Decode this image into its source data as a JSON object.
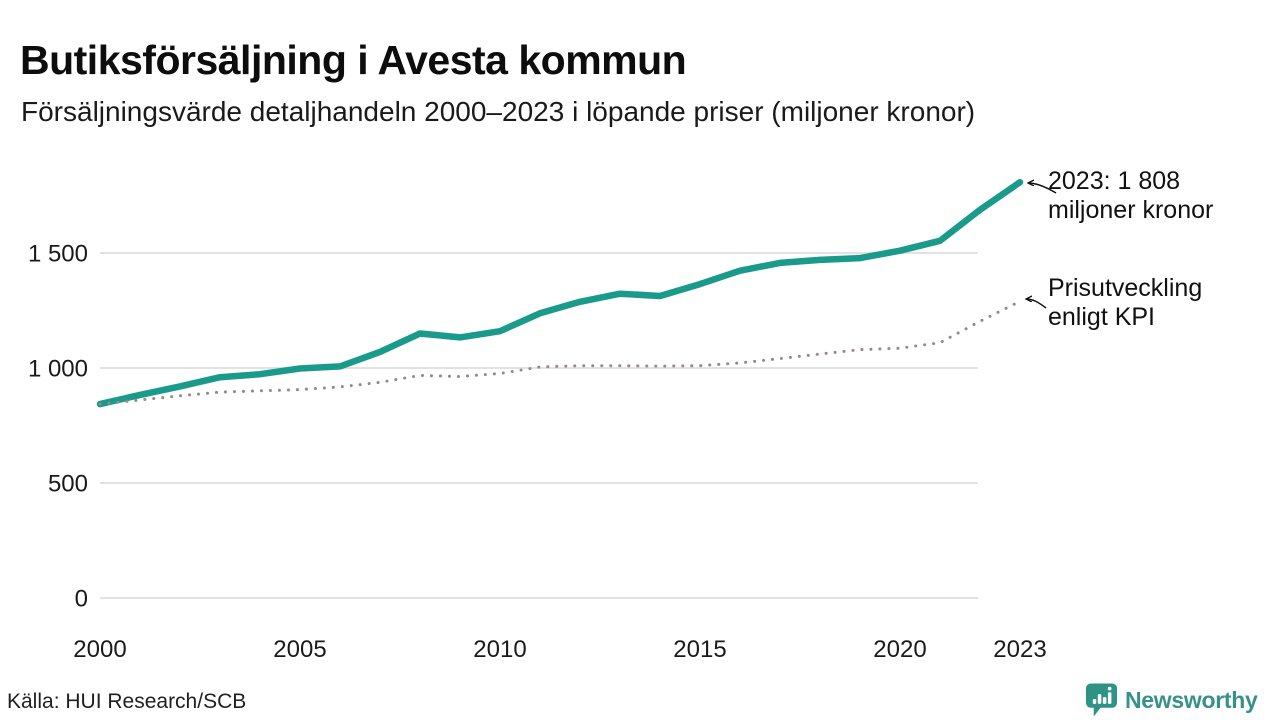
{
  "header": {
    "title": "Butiksförsäljning i Avesta kommun",
    "subtitle": "Försäljningsvärde detaljhandeln 2000–2023 i löpande priser (miljoner kronor)"
  },
  "annotations": {
    "sales_2023": {
      "line1": "2023: 1 808",
      "line2": "miljoner kronor"
    },
    "kpi": {
      "line1": "Prisutveckling",
      "line2": "enligt KPI"
    }
  },
  "source": {
    "text": "Källa: HUI Research/SCB"
  },
  "logo": {
    "wordmark": "Newsworthy",
    "icon": "bar-chart-speech-bubble-icon"
  },
  "colors": {
    "sales_line": "#1a9a8b",
    "kpi_line": "#938b85",
    "gridline": "#e2e2e2",
    "text": "#1a1a1a",
    "logo_teal": "#2f9287"
  },
  "chart_data": {
    "type": "line",
    "title": "Butiksförsäljning i Avesta kommun",
    "subtitle": "Försäljningsvärde detaljhandeln 2000–2023 i löpande priser (miljoner kronor)",
    "xlabel": "",
    "ylabel": "miljoner kronor",
    "x": [
      2000,
      2001,
      2002,
      2003,
      2004,
      2005,
      2006,
      2007,
      2008,
      2009,
      2010,
      2011,
      2012,
      2013,
      2014,
      2015,
      2016,
      2017,
      2018,
      2019,
      2020,
      2021,
      2022,
      2023
    ],
    "series": [
      {
        "name": "Försäljningsvärde i löpande priser",
        "style": "solid",
        "color": "#1a9a8b",
        "values": [
          843,
          883,
          920,
          960,
          973,
          998,
          1007,
          1070,
          1150,
          1133,
          1160,
          1238,
          1288,
          1323,
          1313,
          1365,
          1423,
          1457,
          1470,
          1478,
          1510,
          1553,
          1688,
          1808
        ]
      },
      {
        "name": "Prisutveckling enligt KPI",
        "style": "dotted",
        "color": "#938b85",
        "values": [
          843,
          861,
          879,
          895,
          901,
          906,
          918,
          938,
          968,
          963,
          976,
          1005,
          1010,
          1010,
          1008,
          1010,
          1022,
          1041,
          1061,
          1080,
          1086,
          1110,
          1203,
          1290
        ]
      }
    ],
    "yticks": [
      0,
      500,
      1000,
      1500
    ],
    "ytick_labels": [
      "0",
      "500",
      "1 000",
      "1 500"
    ],
    "xticks": [
      2000,
      2005,
      2010,
      2015,
      2020,
      2023
    ],
    "xtick_labels": [
      "2000",
      "2005",
      "2010",
      "2015",
      "2020",
      "2023"
    ],
    "ylim": [
      0,
      1950
    ],
    "grid": "horizontal",
    "legend": "annotations-instead-of-legend"
  }
}
